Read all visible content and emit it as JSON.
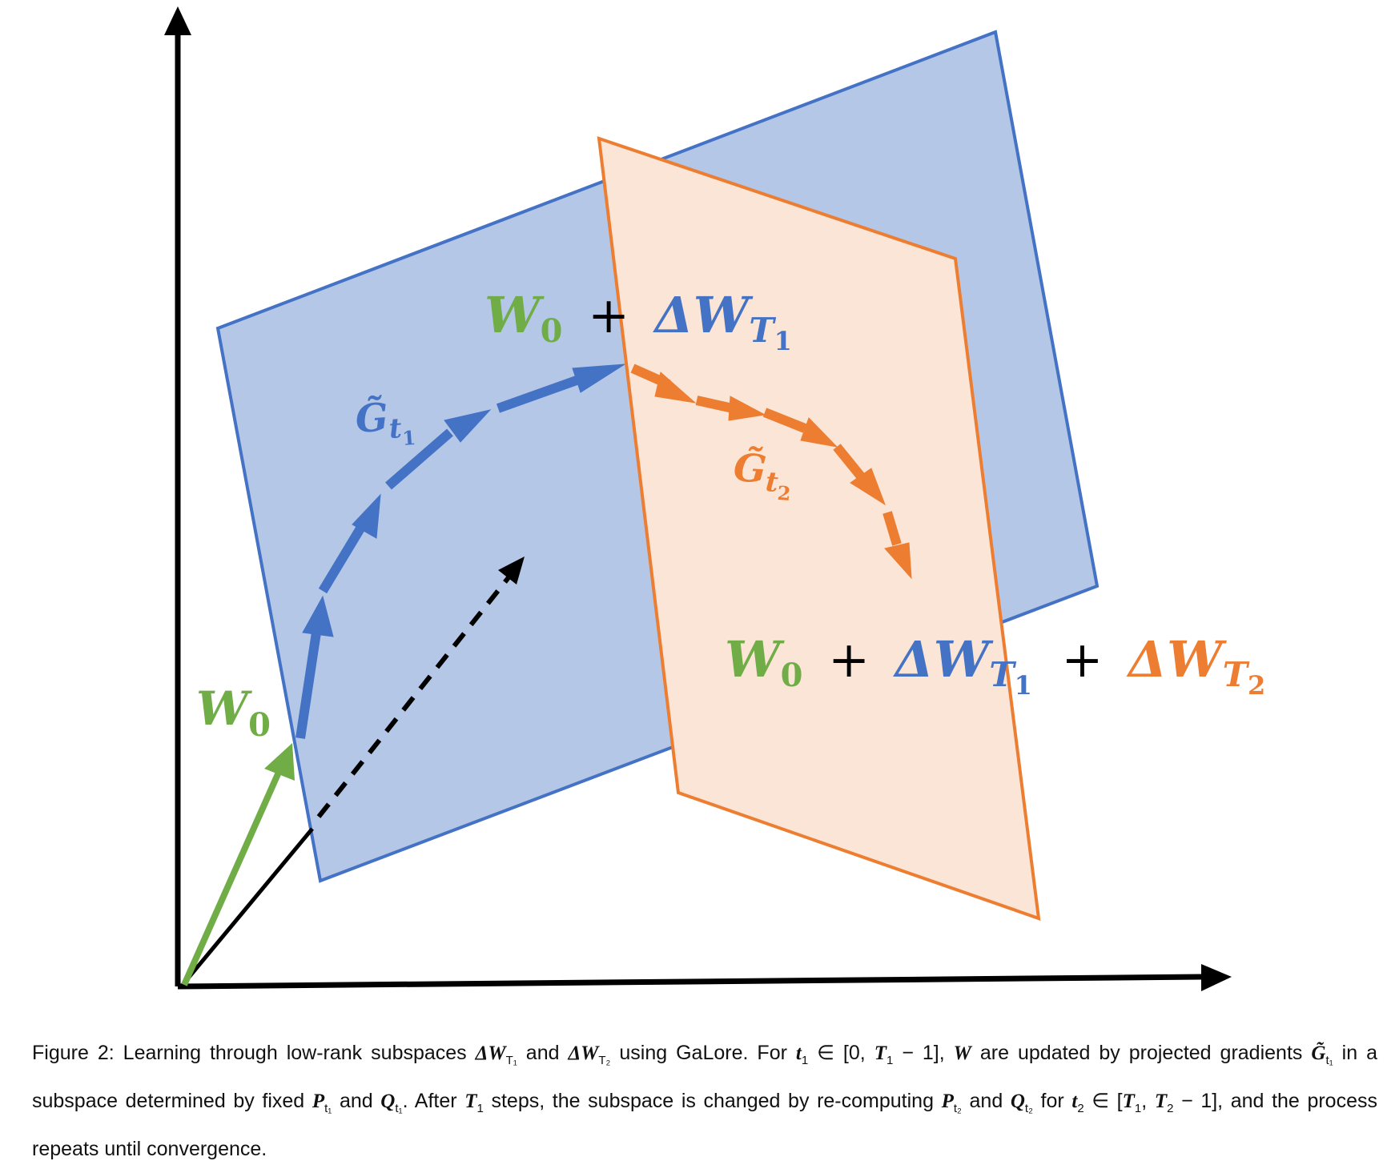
{
  "colors": {
    "blue": "#4472C4",
    "blue_fill": "#B4C7E7",
    "orange": "#ED7D31",
    "orange_fill": "#FBE5D6",
    "green": "#70AD47",
    "axis": "#000000"
  },
  "labels": {
    "w0_main": "W",
    "w0_sub": "0",
    "g_tilde_1": "G̃",
    "g_sub_1": "t",
    "g_sub_1_index": "1",
    "g_tilde_2": "G̃",
    "g_sub_2": "t",
    "g_sub_2_index": "2",
    "mid_w": "W",
    "mid_w_sub": "0",
    "mid_plus": "+",
    "mid_dw": "ΔW",
    "mid_T": "T",
    "mid_T_index": "1",
    "end_w": "W",
    "end_w_sub": "0",
    "end_plus1": "+",
    "end_dw1": "ΔW",
    "end_T1": "T",
    "end_T1_index": "1",
    "end_plus2": "+",
    "end_dw2": "ΔW",
    "end_T2": "T",
    "end_T2_index": "2"
  },
  "caption": {
    "p1": "Figure 2: Learning through low-rank subspaces ",
    "dw1": "ΔW",
    "dw1_sub": "T₁",
    "p2": " and ",
    "dw2": "ΔW",
    "dw2_sub": "T₂",
    "p3": " using GaLore. For ",
    "t1": "t",
    "t1_sub": "1",
    "p4": " ∈ [0, ",
    "T1a": "T",
    "T1a_sub": "1",
    "p5": " − 1], ",
    "W": "W",
    "p6": " are updated by projected gradients ",
    "G": "G̃",
    "G_sub": "t₁",
    "p7": " in a subspace determined by fixed ",
    "P1": "P",
    "P1_sub": "t₁",
    "p8": " and ",
    "Q1": "Q",
    "Q1_sub": "t₁",
    "p9": ". After ",
    "T1b": "T",
    "T1b_sub": "1",
    "p10": " steps, the subspace is changed by re-computing ",
    "P2": "P",
    "P2_sub": "t₂",
    "p11": " and ",
    "Q2": "Q",
    "Q2_sub": "t₂",
    "p12": " for ",
    "t2": "t",
    "t2_sub": "2",
    "p13": " ∈ [",
    "T1c": "T",
    "T1c_sub": "1",
    "p14": ", ",
    "T2": "T",
    "T2_sub": "2",
    "p15": " − 1], and the process repeats until convergence."
  }
}
